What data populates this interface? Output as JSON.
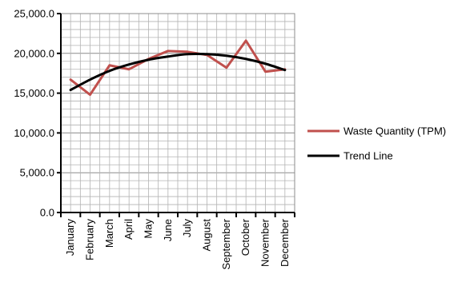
{
  "chart_data": {
    "type": "line",
    "categories": [
      "January",
      "February",
      "March",
      "April",
      "May",
      "June",
      "July",
      "August",
      "September",
      "October",
      "November",
      "December"
    ],
    "series": [
      {
        "name": "Waste Quantity (TPM)",
        "color": "#c0504d",
        "values": [
          16700,
          14800,
          18500,
          18000,
          19300,
          20300,
          20200,
          19800,
          18200,
          21600,
          17700,
          18000
        ]
      },
      {
        "name": "Trend Line",
        "color": "#000000",
        "values": [
          15400,
          16700,
          17800,
          18600,
          19200,
          19600,
          19900,
          19900,
          19700,
          19300,
          18700,
          17900
        ]
      }
    ],
    "yticks": [
      "0.0",
      "5,000.0",
      "10,000.0",
      "15,000.0",
      "20,000.0",
      "25,000.0"
    ],
    "ylim": [
      0,
      25000
    ],
    "xlabel": "",
    "ylabel": "",
    "title": "",
    "grid": true,
    "legend_position": "right"
  }
}
